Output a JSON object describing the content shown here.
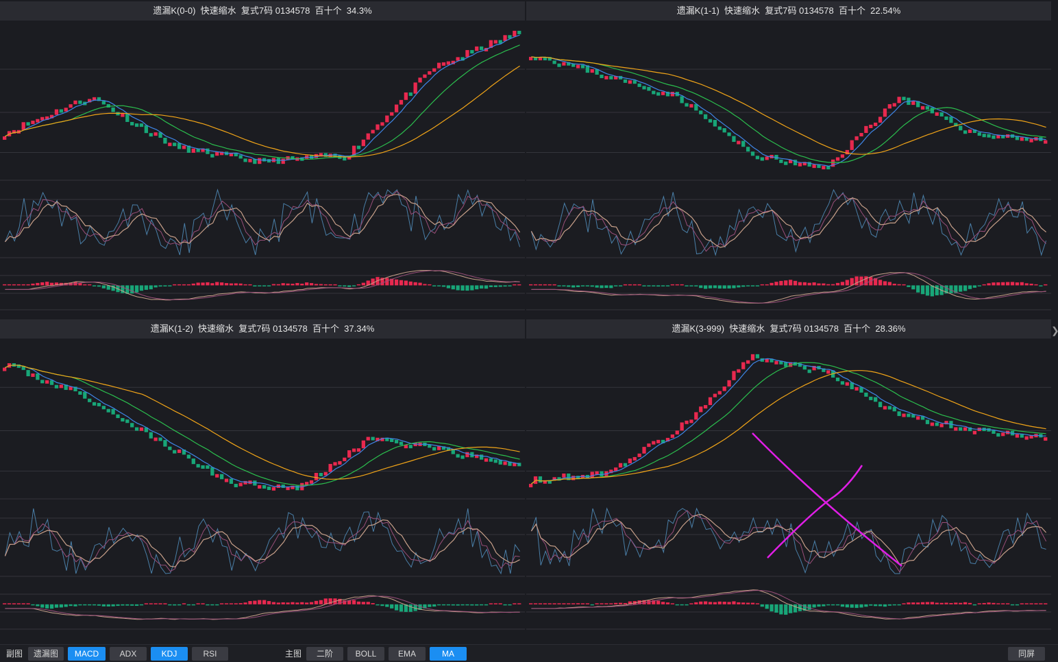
{
  "panels": [
    {
      "title": "遗漏K(0-0)  快速缩水  复式7码 0134578  百十个  34.3%",
      "seed": 11,
      "trend": [
        0.3,
        0.55,
        0.2,
        0.1,
        0.15,
        0.75,
        1.0
      ]
    },
    {
      "title": "遗漏K(1-1)  快速缩水  复式7码 0134578  百十个  22.54%",
      "seed": 23,
      "trend": [
        0.85,
        0.7,
        0.55,
        0.15,
        0.05,
        0.55,
        0.3,
        0.25
      ]
    },
    {
      "title": "遗漏K(1-2)  快速缩水  复式7码 0134578  百十个  37.34%",
      "seed": 37,
      "trend": [
        0.9,
        0.7,
        0.4,
        0.1,
        0.05,
        0.4,
        0.3,
        0.2
      ]
    },
    {
      "title": "遗漏K(3-999)  快速缩水  复式7码 0134578  百十个  28.36%",
      "seed": 53,
      "trend": [
        0.1,
        0.15,
        0.45,
        0.95,
        0.85,
        0.55,
        0.45,
        0.4
      ]
    }
  ],
  "toolbar": {
    "sub_label": "副图",
    "sub_buttons": [
      {
        "label": "遗漏图",
        "active": false
      },
      {
        "label": "MACD",
        "active": true
      },
      {
        "label": "ADX",
        "active": false
      },
      {
        "label": "KDJ",
        "active": true
      },
      {
        "label": "RSI",
        "active": false
      }
    ],
    "main_label": "主图",
    "main_buttons": [
      {
        "label": "二阶",
        "active": false
      },
      {
        "label": "BOLL",
        "active": false
      },
      {
        "label": "EMA",
        "active": false
      },
      {
        "label": "MA",
        "active": true
      }
    ],
    "fullscreen_label": "同屏"
  },
  "colors": {
    "up": "#e8294f",
    "down": "#18a678",
    "ma_short": "#3f86e8",
    "ma_mid": "#2bbf4e",
    "ma_long": "#f2a518",
    "kdj_j": "#4a7fa8",
    "kdj_k": "#c8a08a",
    "kdj_d": "#9a4f7a",
    "annotation": "#e01ee6"
  },
  "chart_data": {
    "type": "candlestick",
    "note_series": [
      "MA",
      "KDJ",
      "MACD"
    ]
  }
}
